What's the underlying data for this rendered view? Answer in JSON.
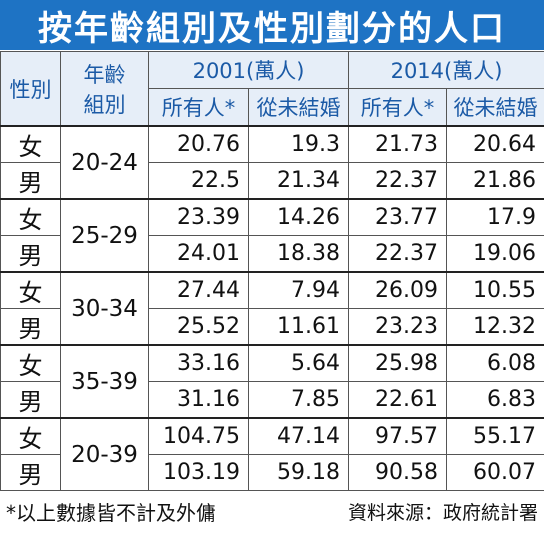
{
  "title": "按年齡組別及性別劃分的人口",
  "headers": {
    "sex": "性別",
    "age_line1": "年齡",
    "age_line2": "組別",
    "year_2001": "2001(萬人)",
    "year_2014": "2014(萬人)",
    "all": "所有人*",
    "never_married": "從未結婚"
  },
  "rows": [
    {
      "sex": "女",
      "age": "20-24",
      "v2001_all": "20.76",
      "v2001_nm": "19.3",
      "v2014_all": "21.73",
      "v2014_nm": "20.64"
    },
    {
      "sex": "男",
      "age": "",
      "v2001_all": "22.5",
      "v2001_nm": "21.34",
      "v2014_all": "22.37",
      "v2014_nm": "21.86"
    },
    {
      "sex": "女",
      "age": "25-29",
      "v2001_all": "23.39",
      "v2001_nm": "14.26",
      "v2014_all": "23.77",
      "v2014_nm": "17.9"
    },
    {
      "sex": "男",
      "age": "",
      "v2001_all": "24.01",
      "v2001_nm": "18.38",
      "v2014_all": "22.37",
      "v2014_nm": "19.06"
    },
    {
      "sex": "女",
      "age": "30-34",
      "v2001_all": "27.44",
      "v2001_nm": "7.94",
      "v2014_all": "26.09",
      "v2014_nm": "10.55"
    },
    {
      "sex": "男",
      "age": "",
      "v2001_all": "25.52",
      "v2001_nm": "11.61",
      "v2014_all": "23.23",
      "v2014_nm": "12.32"
    },
    {
      "sex": "女",
      "age": "35-39",
      "v2001_all": "33.16",
      "v2001_nm": "5.64",
      "v2014_all": "25.98",
      "v2014_nm": "6.08"
    },
    {
      "sex": "男",
      "age": "",
      "v2001_all": "31.16",
      "v2001_nm": "7.85",
      "v2014_all": "22.61",
      "v2014_nm": "6.83"
    },
    {
      "sex": "女",
      "age": "20-39",
      "v2001_all": "104.75",
      "v2001_nm": "47.14",
      "v2014_all": "97.57",
      "v2014_nm": "55.17"
    },
    {
      "sex": "男",
      "age": "",
      "v2001_all": "103.19",
      "v2001_nm": "59.18",
      "v2014_all": "90.58",
      "v2014_nm": "60.07"
    }
  ],
  "footnote": "*以上數據皆不計及外傭",
  "source": "資料來源：政府統計署",
  "colors": {
    "title_bg": "#1e73c4",
    "header_text": "#1b5aa6",
    "header_bg": "#e6eef8"
  }
}
